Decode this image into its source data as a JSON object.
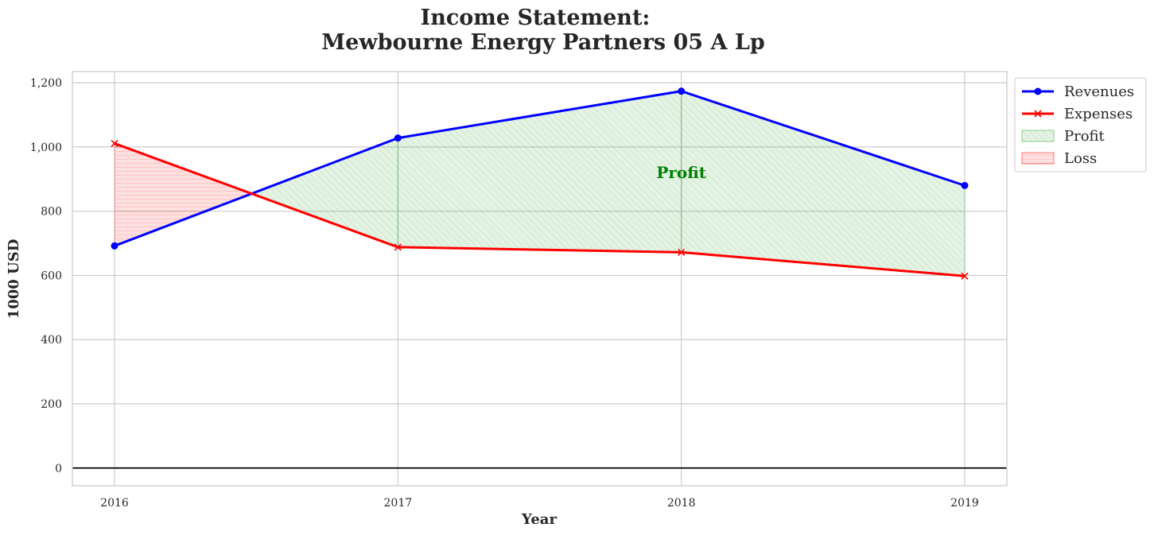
{
  "chart_data": {
    "type": "line",
    "title_lines": [
      "Income Statement:",
      "Mewbourne Energy Partners 05 A Lp"
    ],
    "xlabel": "Year",
    "ylabel": "1000 USD",
    "categories": [
      "2016",
      "2017",
      "2018",
      "2019"
    ],
    "ylim": [
      -55,
      1235
    ],
    "yticks": [
      0,
      200,
      400,
      600,
      800,
      1000,
      1200
    ],
    "ytick_labels": [
      "0",
      "200",
      "400",
      "600",
      "800",
      "1,000",
      "1,200"
    ],
    "grid": true,
    "legend_position": "outside-top-right",
    "series": [
      {
        "name": "Revenues",
        "values": [
          692,
          1028,
          1174,
          880
        ],
        "color": "#0000ff",
        "marker": "circle"
      },
      {
        "name": "Expenses",
        "values": [
          1011,
          688,
          672,
          598
        ],
        "color": "#ff0000",
        "marker": "x"
      }
    ],
    "fills": [
      {
        "name": "Profit",
        "color": "#2ca02c"
      },
      {
        "name": "Loss",
        "color": "#ff0000"
      }
    ],
    "annotations": [
      {
        "text": "Profit",
        "x": "2018",
        "y": 920,
        "color": "#008000"
      }
    ]
  }
}
